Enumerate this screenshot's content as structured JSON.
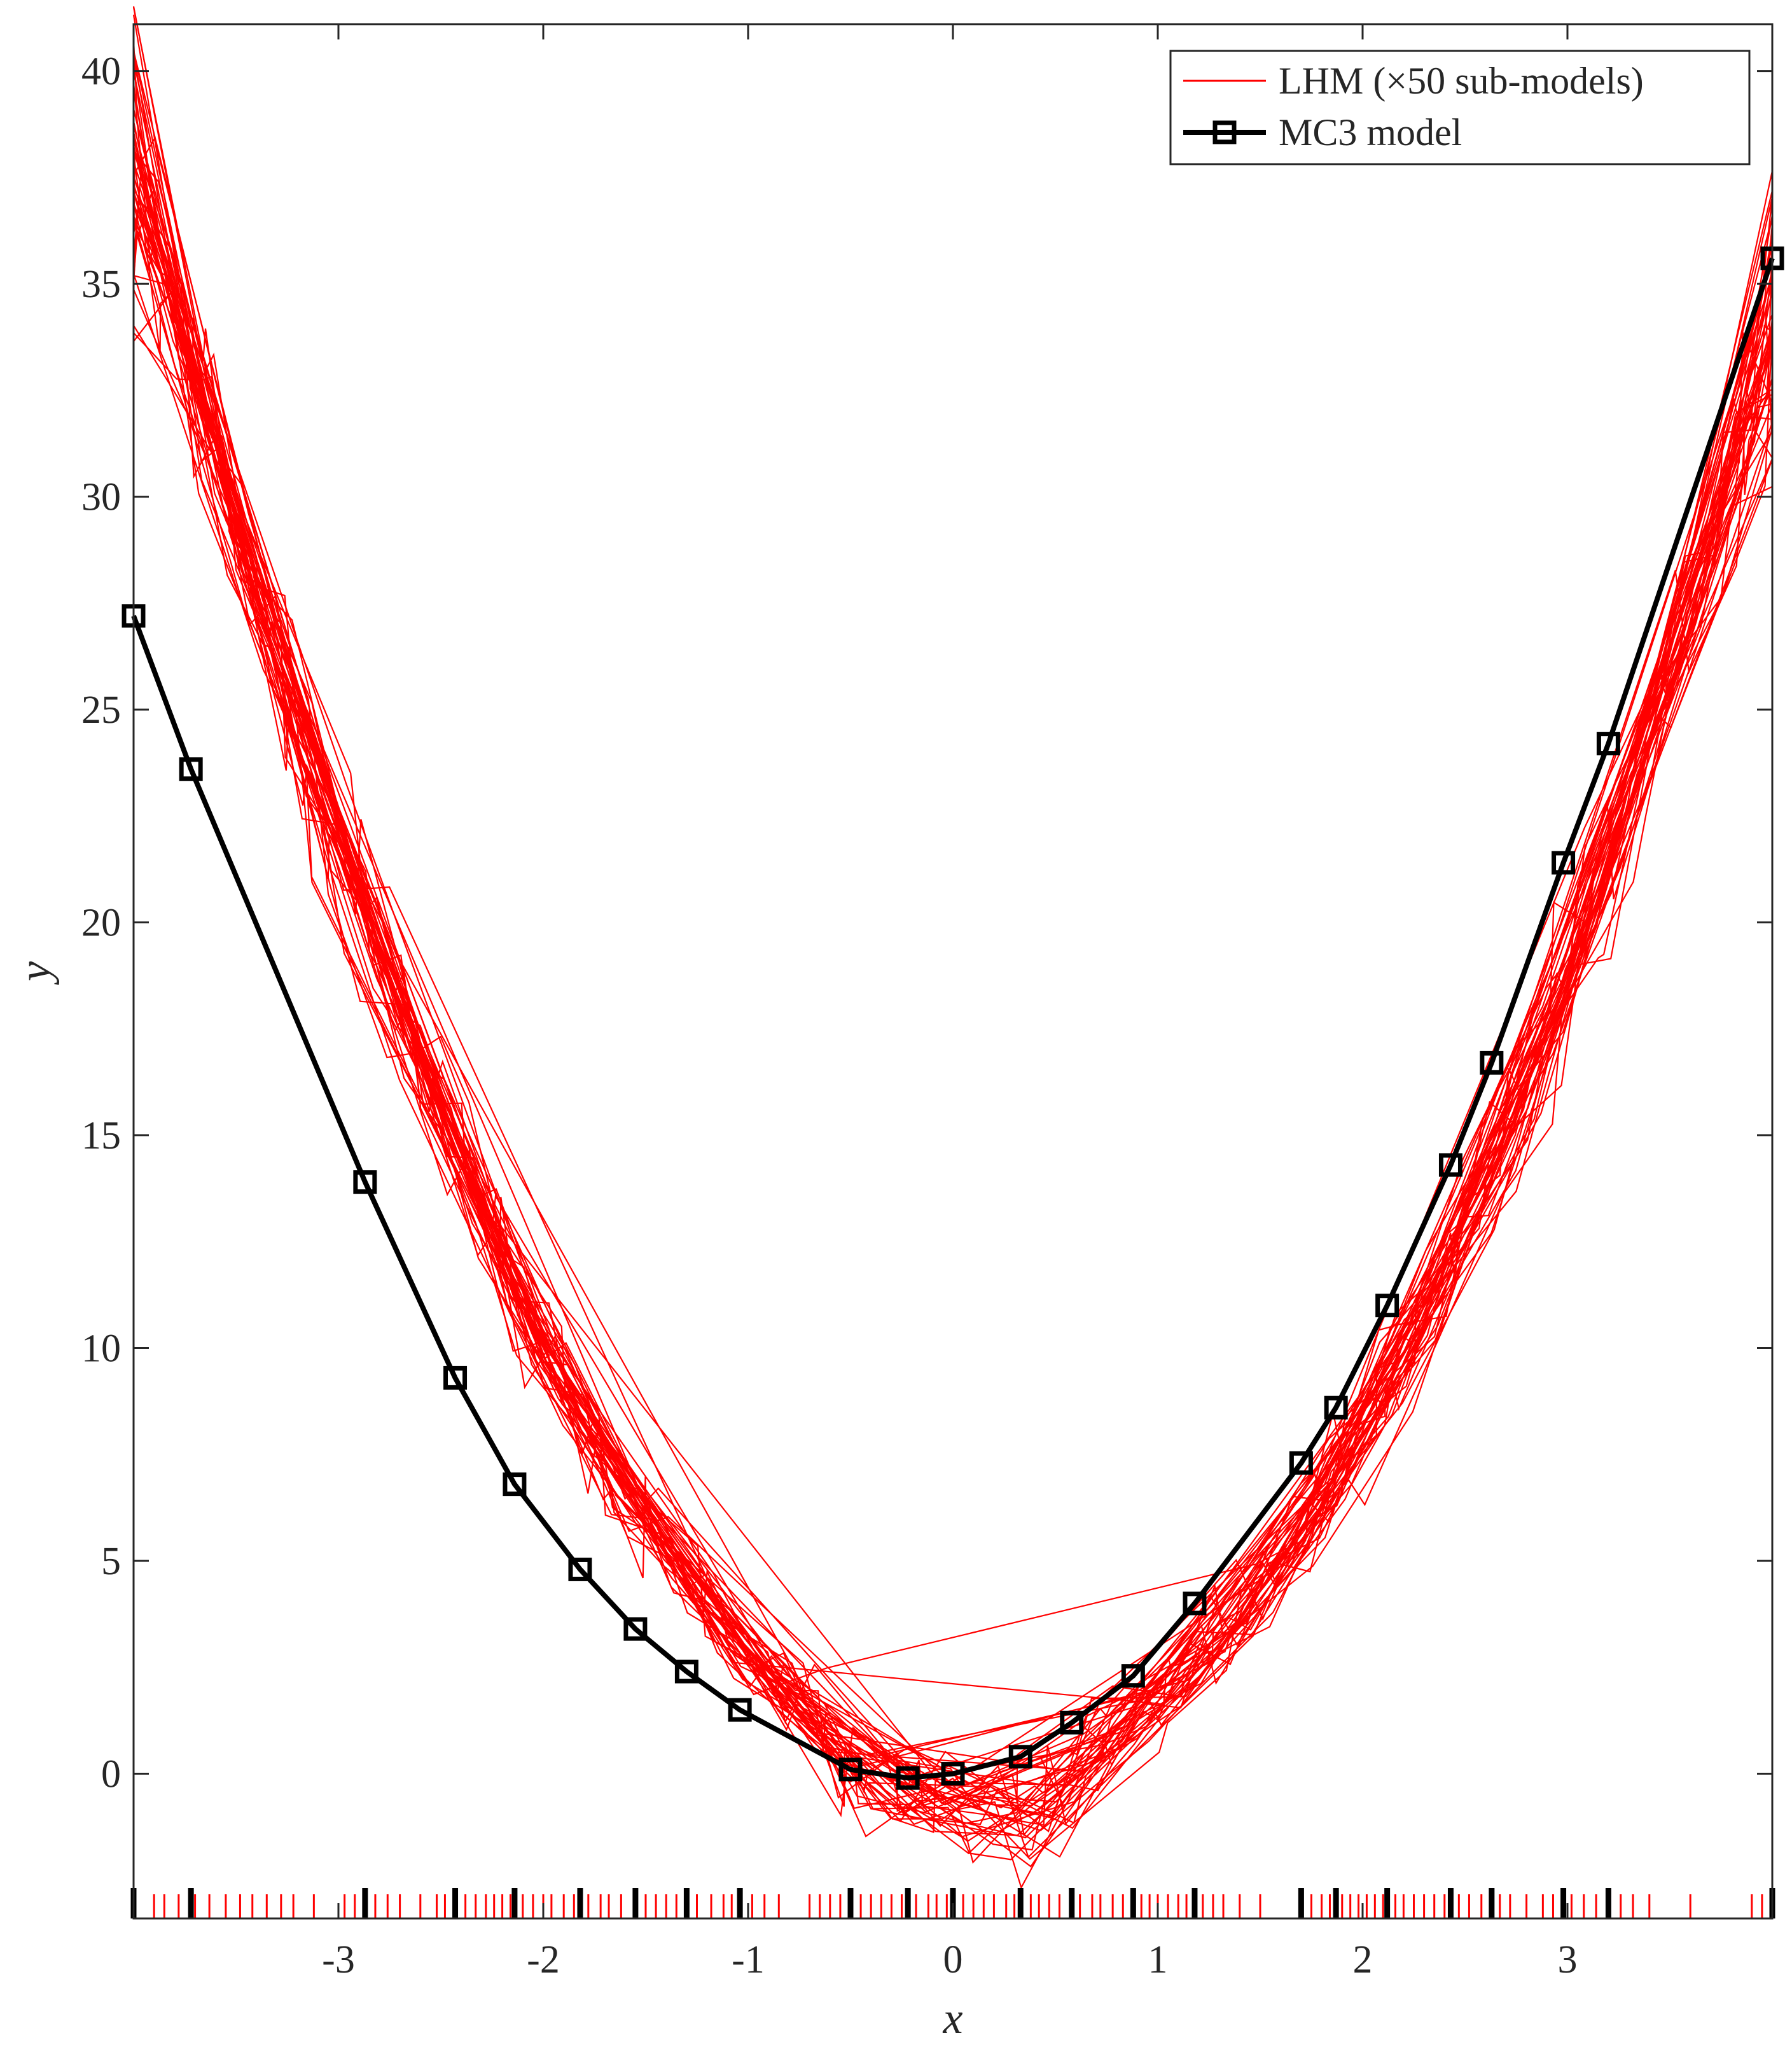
{
  "chart_data": {
    "type": "line",
    "xlabel": "x",
    "ylabel": "y",
    "xlim": [
      -4,
      4
    ],
    "ylim": [
      -3.4,
      41.1
    ],
    "x_ticks": [
      -3,
      -2,
      -1,
      0,
      1,
      2,
      3
    ],
    "x_tick_labels": [
      "-3",
      "-2",
      "-1",
      "0",
      "1",
      "2",
      "3"
    ],
    "y_ticks": [
      0,
      5,
      10,
      15,
      20,
      25,
      30,
      35,
      40
    ],
    "y_tick_labels": [
      "0",
      "5",
      "10",
      "15",
      "20",
      "25",
      "30",
      "35",
      "40"
    ],
    "grid": false,
    "legend_position": "top-right",
    "colors": {
      "lhm": "#ff0000",
      "mc3": "#000000",
      "axes": "#262626"
    },
    "legend": [
      {
        "key": "lhm",
        "label": "LHM (×50 sub-models)"
      },
      {
        "key": "mc3",
        "label": "MC3 model"
      }
    ],
    "lhm_submodel_count": 50,
    "series": [
      {
        "name": "MC3 model",
        "marker": "square",
        "x": [
          -4.0,
          -3.72,
          -2.87,
          -2.43,
          -2.14,
          -1.82,
          -1.55,
          -1.3,
          -1.04,
          -0.5,
          -0.22,
          0.0,
          0.33,
          0.58,
          0.88,
          1.18,
          1.7,
          1.87,
          2.12,
          2.43,
          2.63,
          2.98,
          3.2,
          4.0
        ],
        "y": [
          27.2,
          23.6,
          13.9,
          9.3,
          6.8,
          4.8,
          3.4,
          2.4,
          1.5,
          0.1,
          -0.1,
          0.0,
          0.4,
          1.2,
          2.3,
          4.0,
          7.3,
          8.6,
          11.0,
          14.3,
          16.7,
          21.4,
          24.2,
          35.6
        ]
      }
    ],
    "rug_lhm_x": [
      -3.9,
      -3.85,
      -3.78,
      -3.7,
      -3.63,
      -3.55,
      -3.48,
      -3.42,
      -3.35,
      -3.28,
      -3.22,
      -3.12,
      -2.97,
      -2.92,
      -2.82,
      -2.76,
      -2.7,
      -2.6,
      -2.52,
      -2.48,
      -2.38,
      -2.33,
      -2.28,
      -2.24,
      -2.2,
      -2.16,
      -2.1,
      -2.05,
      -2.0,
      -1.96,
      -1.9,
      -1.85,
      -1.78,
      -1.72,
      -1.68,
      -1.62,
      -1.5,
      -1.45,
      -1.4,
      -1.35,
      -1.25,
      -1.18,
      -1.12,
      -1.08,
      -0.98,
      -0.92,
      -0.85,
      -0.7,
      -0.65,
      -0.6,
      -0.55,
      -0.45,
      -0.4,
      -0.35,
      -0.3,
      -0.25,
      -0.18,
      -0.12,
      -0.08,
      -0.03,
      0.05,
      0.1,
      0.15,
      0.2,
      0.26,
      0.3,
      0.38,
      0.42,
      0.47,
      0.52,
      0.62,
      0.68,
      0.72,
      0.78,
      0.83,
      0.92,
      0.96,
      1.0,
      1.05,
      1.1,
      1.14,
      1.22,
      1.27,
      1.32,
      1.4,
      1.5,
      1.75,
      1.8,
      1.84,
      1.9,
      1.94,
      1.98,
      2.02,
      2.06,
      2.1,
      2.16,
      2.2,
      2.25,
      2.3,
      2.35,
      2.4,
      2.47,
      2.52,
      2.58,
      2.67,
      2.72,
      2.8,
      2.88,
      2.93,
      3.02,
      3.08,
      3.14,
      3.26,
      3.32,
      3.4,
      3.6,
      3.9,
      3.95
    ]
  }
}
